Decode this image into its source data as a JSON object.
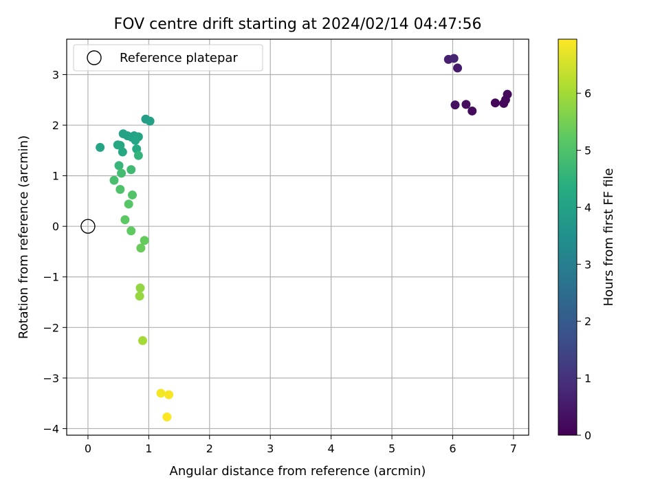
{
  "chart_data": {
    "type": "scatter",
    "title": "FOV centre drift starting at 2024/02/14 04:47:56",
    "xlabel": "Angular distance from reference (arcmin)",
    "ylabel": "Rotation from reference (arcmin)",
    "xlim": [
      -0.35,
      7.25
    ],
    "ylim": [
      -4.13,
      3.7
    ],
    "xticks": [
      0,
      1,
      2,
      3,
      4,
      5,
      6,
      7
    ],
    "yticks": [
      -4,
      -3,
      -2,
      -1,
      0,
      1,
      2,
      3
    ],
    "grid": true,
    "legend": {
      "position": "upper-left",
      "entries": [
        "Reference platepar"
      ]
    },
    "colorbar": {
      "label": "Hours from first FF file",
      "range": [
        0,
        6.95
      ],
      "ticks": [
        0,
        1,
        2,
        3,
        4,
        5,
        6
      ],
      "colormap": "viridis"
    },
    "reference_point": {
      "x": 0,
      "y": 0
    },
    "points": [
      {
        "x": 6.7,
        "y": 2.44,
        "h": 0.1
      },
      {
        "x": 6.84,
        "y": 2.43,
        "h": 0.12
      },
      {
        "x": 6.87,
        "y": 2.5,
        "h": 0.14
      },
      {
        "x": 6.9,
        "y": 2.61,
        "h": 0.16
      },
      {
        "x": 6.32,
        "y": 2.28,
        "h": 0.2
      },
      {
        "x": 6.22,
        "y": 2.41,
        "h": 0.24
      },
      {
        "x": 6.04,
        "y": 2.4,
        "h": 0.28
      },
      {
        "x": 6.08,
        "y": 3.13,
        "h": 0.5
      },
      {
        "x": 5.93,
        "y": 3.3,
        "h": 0.62
      },
      {
        "x": 6.02,
        "y": 3.32,
        "h": 0.72
      },
      {
        "x": 0.95,
        "y": 2.12,
        "h": 3.9
      },
      {
        "x": 1.02,
        "y": 2.08,
        "h": 3.95
      },
      {
        "x": 0.58,
        "y": 1.83,
        "h": 4.0
      },
      {
        "x": 0.65,
        "y": 1.79,
        "h": 4.02
      },
      {
        "x": 0.72,
        "y": 1.76,
        "h": 4.05
      },
      {
        "x": 0.76,
        "y": 1.79,
        "h": 4.07
      },
      {
        "x": 0.83,
        "y": 1.77,
        "h": 4.1
      },
      {
        "x": 0.78,
        "y": 1.7,
        "h": 4.12
      },
      {
        "x": 0.2,
        "y": 1.56,
        "h": 4.1
      },
      {
        "x": 0.49,
        "y": 1.61,
        "h": 4.15
      },
      {
        "x": 0.53,
        "y": 1.6,
        "h": 4.18
      },
      {
        "x": 0.57,
        "y": 1.47,
        "h": 4.2
      },
      {
        "x": 0.8,
        "y": 1.53,
        "h": 4.25
      },
      {
        "x": 0.83,
        "y": 1.4,
        "h": 4.55
      },
      {
        "x": 0.51,
        "y": 1.2,
        "h": 4.6
      },
      {
        "x": 0.71,
        "y": 1.12,
        "h": 4.75
      },
      {
        "x": 0.55,
        "y": 1.05,
        "h": 4.8
      },
      {
        "x": 0.43,
        "y": 0.91,
        "h": 4.9
      },
      {
        "x": 0.53,
        "y": 0.73,
        "h": 5.0
      },
      {
        "x": 0.73,
        "y": 0.62,
        "h": 5.05
      },
      {
        "x": 0.67,
        "y": 0.44,
        "h": 5.1
      },
      {
        "x": 0.61,
        "y": 0.13,
        "h": 5.2
      },
      {
        "x": 0.71,
        "y": -0.09,
        "h": 5.25
      },
      {
        "x": 0.93,
        "y": -0.28,
        "h": 5.3
      },
      {
        "x": 0.87,
        "y": -0.43,
        "h": 5.35
      },
      {
        "x": 0.86,
        "y": -1.22,
        "h": 5.8
      },
      {
        "x": 0.85,
        "y": -1.38,
        "h": 5.85
      },
      {
        "x": 0.9,
        "y": -2.26,
        "h": 6.0
      },
      {
        "x": 1.2,
        "y": -3.3,
        "h": 6.85
      },
      {
        "x": 1.33,
        "y": -3.33,
        "h": 6.9
      },
      {
        "x": 1.3,
        "y": -3.77,
        "h": 6.95
      }
    ]
  }
}
